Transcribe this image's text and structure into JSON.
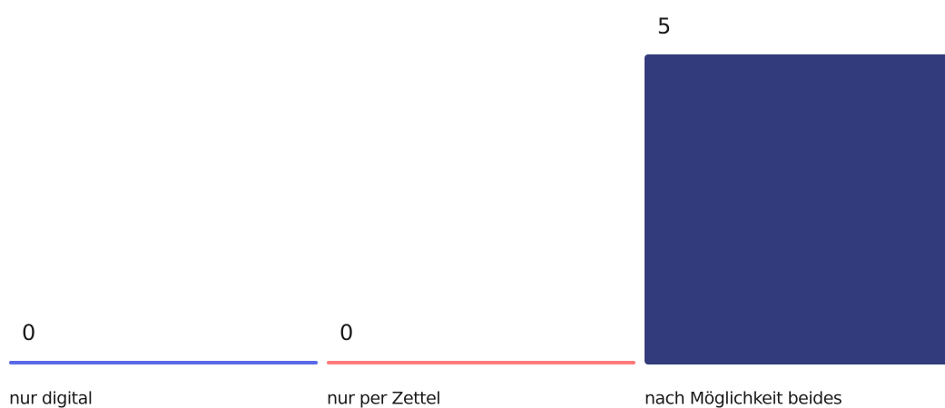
{
  "chart_data": {
    "type": "bar",
    "categories": [
      "nur digital",
      "nur per Zettel",
      "nach Möglichkeit beides"
    ],
    "values": [
      0,
      0,
      5
    ],
    "colors": [
      "#5a6ae6",
      "#ff7b7b",
      "#323b7b"
    ]
  }
}
